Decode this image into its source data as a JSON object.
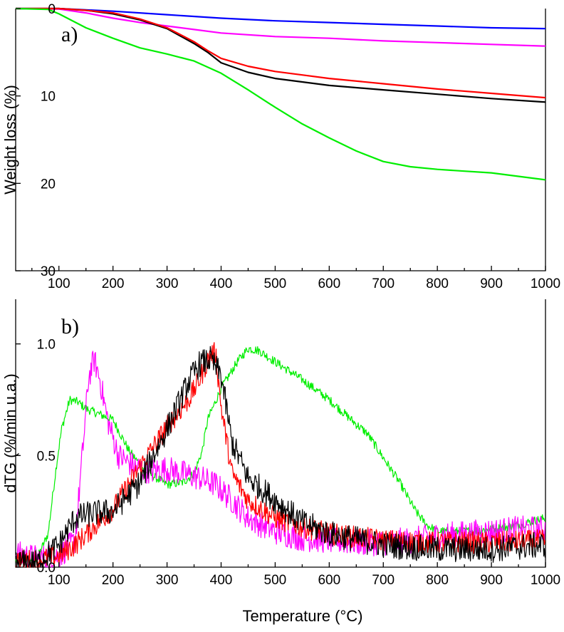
{
  "figure_xlabel": "Temperature (°C)",
  "series_colors": {
    "blue": "#0000ff",
    "magenta": "#ff00ff",
    "black": "#000000",
    "red": "#ff0000",
    "green": "#00ee00"
  },
  "chart_data": [
    {
      "panel_label": "a)",
      "type": "line",
      "title": "",
      "xlabel": "Temperature (°C)",
      "ylabel": "Weight loss (%)",
      "xlim": [
        20,
        1000
      ],
      "ylim": [
        0,
        30
      ],
      "y_inverted": true,
      "x_ticks": [
        "100",
        "200",
        "300",
        "400",
        "500",
        "600",
        "700",
        "800",
        "900",
        "1000"
      ],
      "y_ticks": [
        "0",
        "10",
        "20",
        "30"
      ],
      "grid": false,
      "series": [
        {
          "name": "blue",
          "color": "#0000ff",
          "x": [
            20,
            100,
            200,
            300,
            400,
            500,
            600,
            700,
            800,
            900,
            1000
          ],
          "y": [
            0,
            0,
            0.3,
            0.7,
            1.1,
            1.4,
            1.6,
            1.8,
            2.0,
            2.2,
            2.3
          ]
        },
        {
          "name": "magenta",
          "color": "#ff00ff",
          "x": [
            20,
            100,
            150,
            200,
            250,
            300,
            350,
            400,
            450,
            500,
            600,
            700,
            800,
            900,
            1000
          ],
          "y": [
            0,
            0.05,
            0.5,
            1.1,
            1.6,
            2.0,
            2.4,
            2.8,
            3.0,
            3.2,
            3.4,
            3.7,
            3.9,
            4.1,
            4.3
          ]
        },
        {
          "name": "black",
          "color": "#000000",
          "x": [
            20,
            100,
            150,
            200,
            250,
            300,
            350,
            375,
            400,
            450,
            500,
            550,
            600,
            700,
            800,
            900,
            1000
          ],
          "y": [
            0,
            0,
            0.2,
            0.6,
            1.3,
            2.3,
            4.0,
            5.0,
            6.2,
            7.3,
            8.0,
            8.4,
            8.8,
            9.3,
            9.8,
            10.3,
            10.7
          ]
        },
        {
          "name": "red",
          "color": "#ff0000",
          "x": [
            20,
            100,
            150,
            200,
            250,
            300,
            350,
            375,
            400,
            450,
            500,
            550,
            600,
            700,
            800,
            900,
            1000
          ],
          "y": [
            0,
            0,
            0.2,
            0.5,
            1.2,
            2.2,
            3.8,
            4.8,
            5.7,
            6.6,
            7.2,
            7.6,
            8.0,
            8.6,
            9.2,
            9.7,
            10.2
          ]
        },
        {
          "name": "green",
          "color": "#00ee00",
          "x": [
            20,
            80,
            100,
            150,
            200,
            250,
            300,
            350,
            400,
            450,
            500,
            550,
            600,
            650,
            700,
            750,
            800,
            850,
            900,
            950,
            1000
          ],
          "y": [
            0,
            0.1,
            0.6,
            2.2,
            3.4,
            4.5,
            5.2,
            6.0,
            7.4,
            9.3,
            11.3,
            13.2,
            14.8,
            16.3,
            17.5,
            18.1,
            18.4,
            18.6,
            18.8,
            19.2,
            19.6
          ]
        }
      ]
    },
    {
      "panel_label": "b)",
      "type": "line",
      "title": "",
      "xlabel": "Temperature (°C)",
      "ylabel": "dTG (%/min u.a.)",
      "xlim": [
        20,
        1000
      ],
      "ylim": [
        0.0,
        1.2
      ],
      "x_ticks": [
        "100",
        "200",
        "300",
        "400",
        "500",
        "600",
        "700",
        "800",
        "900",
        "1000"
      ],
      "y_ticks": [
        "0.0",
        "0.5",
        "1.0"
      ],
      "grid": false,
      "noise_note": "curves are very noisy; values are the smoothed envelope",
      "series": [
        {
          "name": "green",
          "color": "#00ee00",
          "noise": 0.02,
          "x": [
            20,
            60,
            80,
            95,
            105,
            120,
            135,
            150,
            170,
            200,
            230,
            260,
            300,
            330,
            350,
            365,
            375,
            400,
            430,
            450,
            470,
            500,
            550,
            600,
            650,
            670,
            700,
            730,
            760,
            780,
            800,
            850,
            900,
            950,
            1000
          ],
          "y": [
            0.03,
            0.04,
            0.15,
            0.45,
            0.62,
            0.75,
            0.74,
            0.71,
            0.69,
            0.66,
            0.52,
            0.43,
            0.37,
            0.38,
            0.42,
            0.52,
            0.66,
            0.8,
            0.92,
            0.98,
            0.97,
            0.92,
            0.84,
            0.75,
            0.64,
            0.6,
            0.49,
            0.38,
            0.25,
            0.19,
            0.16,
            0.16,
            0.17,
            0.19,
            0.22
          ]
        },
        {
          "name": "magenta",
          "color": "#ff00ff",
          "noise": 0.06,
          "x": [
            20,
            60,
            100,
            130,
            145,
            155,
            165,
            175,
            190,
            210,
            240,
            270,
            300,
            330,
            360,
            390,
            420,
            450,
            500,
            550,
            600,
            650,
            700,
            750,
            800,
            850,
            900,
            950,
            1000
          ],
          "y": [
            0.06,
            0.04,
            0.05,
            0.12,
            0.55,
            0.85,
            0.93,
            0.85,
            0.66,
            0.5,
            0.45,
            0.43,
            0.44,
            0.42,
            0.4,
            0.37,
            0.3,
            0.22,
            0.16,
            0.13,
            0.12,
            0.11,
            0.11,
            0.12,
            0.14,
            0.15,
            0.16,
            0.17,
            0.17
          ]
        },
        {
          "name": "red",
          "color": "#ff0000",
          "noise": 0.05,
          "x": [
            20,
            60,
            100,
            130,
            160,
            200,
            250,
            300,
            340,
            360,
            380,
            390,
            400,
            420,
            450,
            500,
            550,
            600,
            700,
            800,
            900,
            1000
          ],
          "y": [
            0.03,
            0.03,
            0.05,
            0.1,
            0.17,
            0.26,
            0.45,
            0.63,
            0.75,
            0.84,
            0.95,
            0.96,
            0.72,
            0.42,
            0.3,
            0.22,
            0.18,
            0.15,
            0.12,
            0.11,
            0.11,
            0.12
          ]
        },
        {
          "name": "black",
          "color": "#000000",
          "noise": 0.06,
          "x": [
            20,
            60,
            100,
            130,
            160,
            200,
            250,
            300,
            340,
            360,
            380,
            400,
            420,
            450,
            500,
            550,
            600,
            700,
            800,
            900,
            1000
          ],
          "y": [
            0.02,
            0.02,
            0.1,
            0.22,
            0.24,
            0.25,
            0.38,
            0.62,
            0.83,
            0.91,
            0.93,
            0.86,
            0.56,
            0.4,
            0.3,
            0.2,
            0.15,
            0.1,
            0.08,
            0.08,
            0.1
          ]
        }
      ]
    }
  ]
}
